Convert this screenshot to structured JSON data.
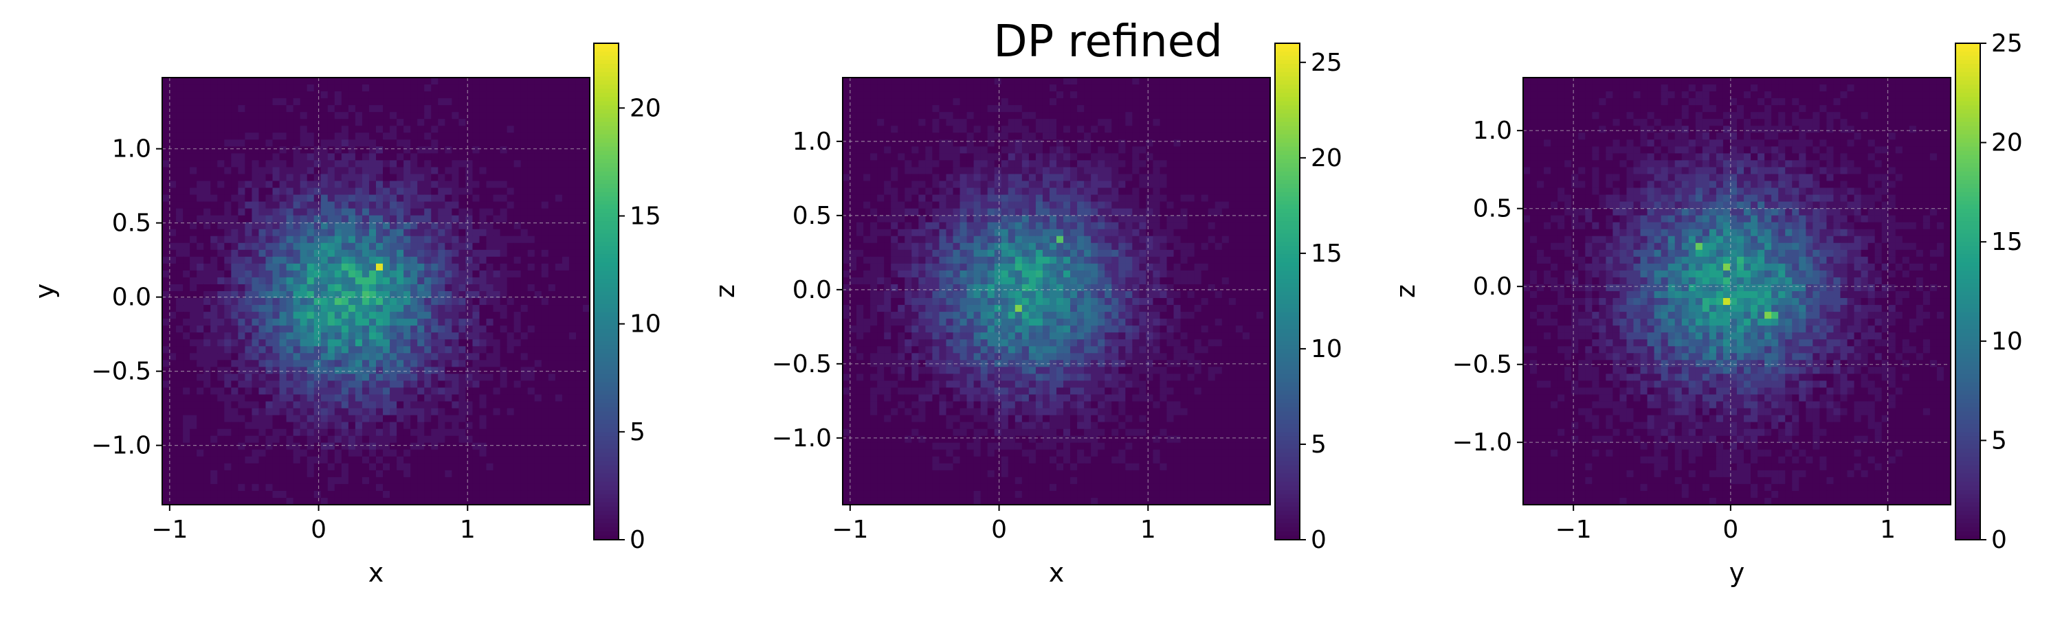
{
  "title": "DP refined",
  "chart_data": [
    {
      "type": "heatmap",
      "xlabel": "x",
      "ylabel": "y",
      "xlim": [
        -1.05,
        1.82
      ],
      "ylim": [
        -1.4,
        1.48
      ],
      "xticks": [
        -1,
        0,
        1
      ],
      "xtick_labels": [
        "−1",
        "0",
        "1"
      ],
      "yticks": [
        -1.0,
        -0.5,
        0.0,
        0.5,
        1.0
      ],
      "ytick_labels": [
        "−1.0",
        "−0.5",
        "0.0",
        "0.5",
        "1.0"
      ],
      "center": [
        0.2,
        0.0
      ],
      "spread": [
        0.42,
        0.42
      ],
      "peak": 13,
      "colorbar": {
        "min": 0,
        "max": 23,
        "ticks": [
          0,
          5,
          10,
          15,
          20
        ],
        "tick_labels": [
          "0",
          "5",
          "10",
          "15",
          "20"
        ]
      },
      "grid": true,
      "colormap": "viridis"
    },
    {
      "type": "heatmap",
      "xlabel": "x",
      "ylabel": "z",
      "xlim": [
        -1.05,
        1.82
      ],
      "ylim": [
        -1.45,
        1.43
      ],
      "xticks": [
        -1,
        0,
        1
      ],
      "xtick_labels": [
        "−1",
        "0",
        "1"
      ],
      "yticks": [
        -1.0,
        -0.5,
        0.0,
        0.5,
        1.0
      ],
      "ytick_labels": [
        "−1.0",
        "−0.5",
        "0.0",
        "0.5",
        "1.0"
      ],
      "center": [
        0.2,
        0.0
      ],
      "spread": [
        0.42,
        0.42
      ],
      "peak": 13,
      "colorbar": {
        "min": 0,
        "max": 26,
        "ticks": [
          0,
          5,
          10,
          15,
          20,
          25
        ],
        "tick_labels": [
          "0",
          "5",
          "10",
          "15",
          "20",
          "25"
        ]
      },
      "grid": true,
      "colormap": "viridis"
    },
    {
      "type": "heatmap",
      "xlabel": "y",
      "ylabel": "z",
      "xlim": [
        -1.32,
        1.4
      ],
      "ylim": [
        -1.4,
        1.34
      ],
      "xticks": [
        -1,
        0,
        1
      ],
      "xtick_labels": [
        "−1",
        "0",
        "1"
      ],
      "yticks": [
        -1.0,
        -0.5,
        0.0,
        0.5,
        1.0
      ],
      "ytick_labels": [
        "−1.0",
        "−0.5",
        "0.0",
        "0.5",
        "1.0"
      ],
      "center": [
        0.0,
        0.0
      ],
      "spread": [
        0.42,
        0.42
      ],
      "peak": 13,
      "colorbar": {
        "min": 0,
        "max": 25,
        "ticks": [
          0,
          5,
          10,
          15,
          20,
          25
        ],
        "tick_labels": [
          "0",
          "5",
          "10",
          "15",
          "20",
          "25"
        ]
      },
      "grid": true,
      "colormap": "viridis"
    }
  ]
}
